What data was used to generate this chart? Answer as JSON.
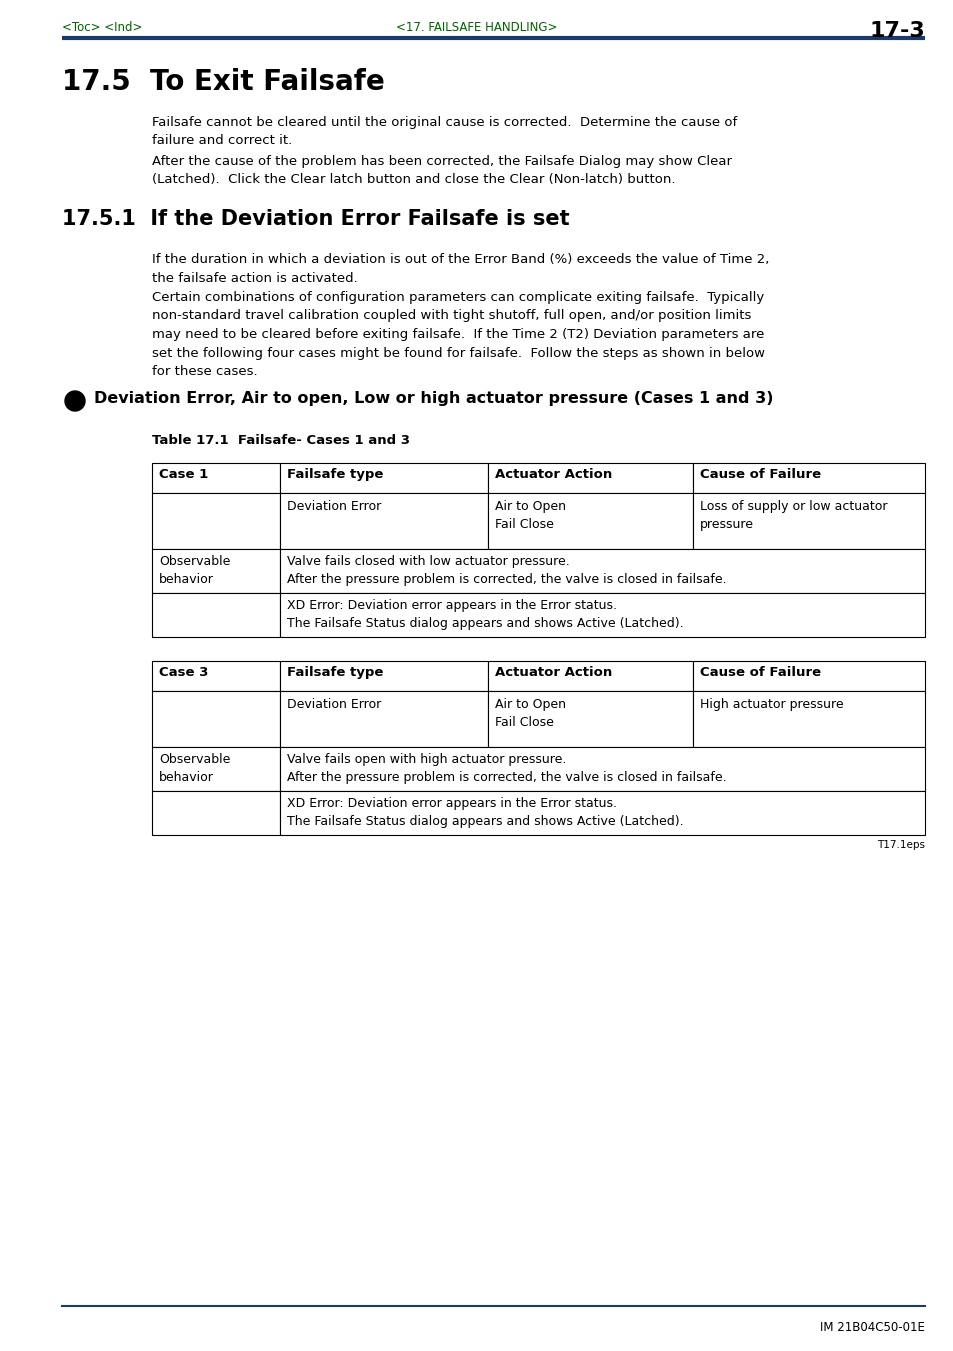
{
  "bg_color": "#ffffff",
  "header_line_color": "#1a3a6b",
  "toc_text": "<Toc> <Ind>",
  "header_center": "<17. FAILSAFE HANDLING>",
  "header_right": "17-3",
  "toc_color": "#006400",
  "header_center_color": "#006400",
  "footer_right": "IM 21B04C50-01E",
  "section_title": "17.5  To Exit Failsafe",
  "sub_section_title": "17.5.1  If the Deviation Error Failsafe is set",
  "bullet_heading": "Deviation Error, Air to open, Low or high actuator pressure (Cases 1 and 3)",
  "table_caption": "Table 17.1  Failsafe- Cases 1 and 3",
  "para1": "Failsafe cannot be cleared until the original cause is corrected.  Determine the cause of\nfailure and correct it.",
  "para2": "After the cause of the problem has been corrected, the Failsafe Dialog may show Clear\n(Latched).  Click the Clear latch button and close the Clear (Non-latch) button.",
  "para3": "If the duration in which a deviation is out of the Error Band (%) exceeds the value of Time 2,\nthe failsafe action is activated.",
  "para4": "Certain combinations of configuration parameters can complicate exiting failsafe.  Typically\nnon-standard travel calibration coupled with tight shutoff, full open, and/or position limits\nmay need to be cleared before exiting failsafe.  If the Time 2 (T2) Deviation parameters are\nset the following four cases might be found for failsafe.  Follow the steps as shown in below\nfor these cases.",
  "table1": {
    "col_headers": [
      "Failsafe type",
      "Actuator Action",
      "Cause of Failure"
    ],
    "case1_label": "Case 1",
    "case1_row1": [
      "Deviation Error",
      "Air to Open\nFail Close",
      "Loss of supply or low actuator\npressure"
    ],
    "case1_obs_label": "Observable\nbehavior",
    "case1_obs1": "Valve fails closed with low actuator pressure.\nAfter the pressure problem is corrected, the valve is closed in failsafe.",
    "case1_obs2": "XD Error: Deviation error appears in the Error status.\nThe Failsafe Status dialog appears and shows Active (Latched).",
    "case3_label": "Case 3",
    "case3_row1": [
      "Deviation Error",
      "Air to Open\nFail Close",
      "High actuator pressure"
    ],
    "case3_obs_label": "Observable\nbehavior",
    "case3_obs1": "Valve fails open with high actuator pressure.\nAfter the pressure problem is corrected, the valve is closed in failsafe.",
    "case3_obs2": "XD Error: Deviation error appears in the Error status.\nThe Failsafe Status dialog appears and shows Active (Latched)."
  },
  "t17_label": "T17.1eps"
}
